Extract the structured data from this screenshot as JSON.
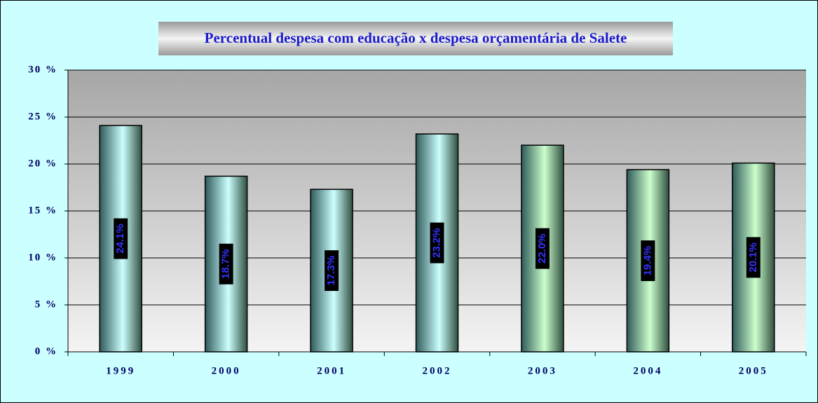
{
  "chart_data": {
    "type": "bar",
    "title": "Percentual despesa com educação x despesa orçamentária de Salete",
    "categories": [
      "1999",
      "2000",
      "2001",
      "2002",
      "2003",
      "2004",
      "2005"
    ],
    "values": [
      24.1,
      18.7,
      17.3,
      23.2,
      22.0,
      19.4,
      20.1
    ],
    "value_labels": [
      "24.1%",
      "18.7%",
      "17.3%",
      "23.2%",
      "22.0%",
      "19.4%",
      "20.1%"
    ],
    "colors": [
      "#ccffff",
      "#ccffff",
      "#ccffff",
      "#ccffff",
      "#ccffcc",
      "#ccffcc",
      "#ccffcc"
    ],
    "ylim": [
      0,
      30
    ],
    "yticks": [
      {
        "value": 0,
        "label": "0 %"
      },
      {
        "value": 5,
        "label": "5 %"
      },
      {
        "value": 10,
        "label": "10 %"
      },
      {
        "value": 15,
        "label": "15 %"
      },
      {
        "value": 20,
        "label": "20 %"
      },
      {
        "value": 25,
        "label": "25 %"
      },
      {
        "value": 30,
        "label": "30 %"
      }
    ],
    "grid": true
  }
}
